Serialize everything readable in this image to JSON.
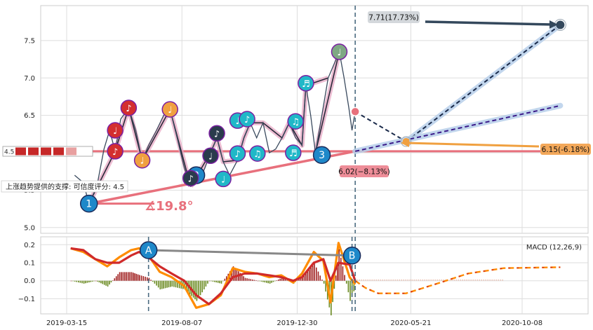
{
  "chart_data": [
    {
      "type": "line",
      "panel": "price",
      "ylim": [
        4.97,
        7.93
      ],
      "y_ticks": [
        "5.0",
        "5.5",
        "6.0",
        "6.5",
        "7.0",
        "7.5"
      ],
      "x_tick_labels": [
        "2019-03-15",
        "2019-08-07",
        "2019-12-30",
        "2020-05-21",
        "2020-10-08"
      ],
      "x_axis": "dates",
      "grid": true,
      "price_series": {
        "name": "",
        "values": [
          [
            "2019-03-25",
            5.7
          ],
          [
            "2019-04-05",
            5.6
          ],
          [
            "2019-04-12",
            5.32
          ],
          [
            "2019-04-22",
            5.55
          ],
          [
            "2019-05-01",
            6.05
          ],
          [
            "2019-05-08",
            6.3
          ],
          [
            "2019-05-15",
            6.02
          ],
          [
            "2019-05-22",
            6.45
          ],
          [
            "2019-06-01",
            6.6
          ],
          [
            "2019-06-10",
            6.3
          ],
          [
            "2019-06-18",
            5.9
          ],
          [
            "2019-06-26",
            6.1
          ],
          [
            "2019-07-06",
            6.3
          ],
          [
            "2019-07-15",
            6.5
          ],
          [
            "2019-07-23",
            6.58
          ],
          [
            "2019-08-01",
            6.2
          ],
          [
            "2019-08-10",
            5.8
          ],
          [
            "2019-08-18",
            5.55
          ],
          [
            "2019-08-28",
            5.6
          ],
          [
            "2019-09-05",
            5.8
          ],
          [
            "2019-09-12",
            6.0
          ],
          [
            "2019-09-20",
            6.2
          ],
          [
            "2019-09-28",
            5.88
          ],
          [
            "2019-10-06",
            5.7
          ],
          [
            "2019-10-16",
            5.9
          ],
          [
            "2019-10-24",
            6.2
          ],
          [
            "2019-11-01",
            6.4
          ],
          [
            "2019-11-09",
            6.2
          ],
          [
            "2019-11-17",
            6.4
          ],
          [
            "2019-11-25",
            6.0
          ],
          [
            "2019-12-03",
            6.05
          ],
          [
            "2019-12-11",
            6.2
          ],
          [
            "2019-12-20",
            6.4
          ],
          [
            "2019-12-28",
            6.2
          ],
          [
            "2020-01-05",
            6.1
          ],
          [
            "2020-01-10",
            6.9
          ],
          [
            "2020-01-16",
            6.5
          ],
          [
            "2020-01-22",
            6.0
          ],
          [
            "2020-01-30",
            6.5
          ],
          [
            "2020-02-07",
            7.0
          ],
          [
            "2020-02-15",
            7.2
          ],
          [
            "2020-02-21",
            7.35
          ],
          [
            "2020-02-27",
            7.0
          ],
          [
            "2020-03-04",
            6.6
          ],
          [
            "2020-03-08",
            6.3
          ],
          [
            "2020-03-12",
            6.55
          ]
        ]
      },
      "projections": [
        {
          "from": [
            "2020-03-12",
            6.55
          ],
          "to": [
            "2020-05-15",
            6.15
          ],
          "style": "dashed-navy"
        },
        {
          "from": [
            "2020-05-15",
            6.15
          ],
          "to": [
            "2020-11-25",
            7.71
          ],
          "style": "dashed-navy-glow"
        },
        {
          "from": [
            "2020-03-12",
            6.02
          ],
          "to": [
            "2020-11-25",
            6.63
          ],
          "style": "dashed-purple-glow"
        }
      ],
      "support_line": {
        "level": 6.02,
        "label": "上涨趋势提供的支撑: 可信度评分: 4.5"
      },
      "trend_line": {
        "from": [
          "2019-04-12",
          5.32
        ],
        "to": [
          "2020-03-12",
          6.02
        ],
        "angle_label": "∡19.8°"
      },
      "zigzag_lines": [
        [
          [
            "2019-04-12",
            5.32
          ],
          [
            "2019-05-15",
            6.02
          ],
          [
            "2019-06-01",
            6.6
          ],
          [
            "2019-06-18",
            5.9
          ],
          [
            "2019-07-23",
            6.58
          ],
          [
            "2019-08-18",
            5.55
          ]
        ],
        [
          [
            "2019-08-18",
            5.55
          ],
          [
            "2019-09-12",
            6.0
          ],
          [
            "2019-09-20",
            6.2
          ],
          [
            "2019-09-28",
            5.88
          ],
          [
            "2019-10-16",
            5.9
          ],
          [
            "2019-10-24",
            6.2
          ],
          [
            "2019-11-01",
            6.4
          ],
          [
            "2019-11-17",
            6.4
          ],
          [
            "2019-12-11",
            6.2
          ],
          [
            "2019-12-20",
            6.4
          ],
          [
            "2020-01-05",
            6.1
          ],
          [
            "2020-01-10",
            6.9
          ],
          [
            "2020-02-07",
            7.0
          ]
        ],
        [
          [
            "2020-01-22",
            6.0
          ],
          [
            "2020-02-21",
            7.35
          ]
        ]
      ],
      "markers": [
        {
          "label": "1",
          "x": "2019-04-12",
          "y": 5.32,
          "kind": "number",
          "color": "#1e88c9"
        },
        {
          "label": "2",
          "x": "2019-08-25",
          "y": 5.7,
          "kind": "number",
          "color": "#1e88c9"
        },
        {
          "label": "3",
          "x": "2020-01-30",
          "y": 5.97,
          "kind": "number",
          "color": "#1e88c9"
        },
        {
          "label": "♪",
          "x": "2019-05-15",
          "y": 6.02,
          "kind": "note",
          "color": "#d32f2f"
        },
        {
          "label": "♩",
          "x": "2019-05-15",
          "y": 6.3,
          "kind": "note",
          "color": "#d32f2f"
        },
        {
          "label": "♪",
          "x": "2019-06-01",
          "y": 6.6,
          "kind": "note",
          "color": "#d32f2f"
        },
        {
          "label": "♩",
          "x": "2019-06-18",
          "y": 5.9,
          "kind": "note",
          "color": "#f0a040"
        },
        {
          "label": "♩",
          "x": "2019-07-23",
          "y": 6.58,
          "kind": "note",
          "color": "#f0a040"
        },
        {
          "label": "♪",
          "x": "2019-08-18",
          "y": 5.66,
          "kind": "note",
          "color": "#2a3b4c"
        },
        {
          "label": "♩",
          "x": "2019-09-12",
          "y": 5.96,
          "kind": "note",
          "color": "#2a3b4c"
        },
        {
          "label": "♪",
          "x": "2019-09-20",
          "y": 6.26,
          "kind": "note",
          "color": "#2a3b4c"
        },
        {
          "label": "♩",
          "x": "2019-09-28",
          "y": 5.65,
          "kind": "note",
          "color": "#20b8c8"
        },
        {
          "label": "♪",
          "x": "2019-10-16",
          "y": 5.99,
          "kind": "note",
          "color": "#20b8c8"
        },
        {
          "label": "♩",
          "x": "2019-10-16",
          "y": 6.43,
          "kind": "note",
          "color": "#20b8c8"
        },
        {
          "label": "♪",
          "x": "2019-10-28",
          "y": 6.45,
          "kind": "note",
          "color": "#20b8c8"
        },
        {
          "label": "♫",
          "x": "2019-11-10",
          "y": 5.99,
          "kind": "note",
          "color": "#20b8c8"
        },
        {
          "label": "♬",
          "x": "2019-12-25",
          "y": 6.0,
          "kind": "note",
          "color": "#20b8c8"
        },
        {
          "label": "♫",
          "x": "2019-12-28",
          "y": 6.42,
          "kind": "note",
          "color": "#20b8c8"
        },
        {
          "label": "♬",
          "x": "2020-01-10",
          "y": 6.93,
          "kind": "note",
          "color": "#20b8c8"
        },
        {
          "label": "♩",
          "x": "2020-02-21",
          "y": 7.35,
          "kind": "note",
          "color": "#7fa884"
        }
      ],
      "annotations": [
        {
          "text": "7.71(17.73%)",
          "kind": "target-top"
        },
        {
          "text": "6.15(-6.18%)",
          "kind": "target-mid"
        },
        {
          "text": "6.02(−8.13%)",
          "kind": "target-low"
        },
        {
          "text": "4.5",
          "kind": "rating"
        }
      ],
      "vertical_marker_date": "2020-03-12"
    },
    {
      "type": "bar",
      "panel": "macd",
      "legend": "MACD (12,26,9)",
      "ylim": [
        -0.18,
        0.24
      ],
      "y_ticks": [
        "0.2",
        "0.1",
        "0.0",
        "−0.1"
      ],
      "grid": true,
      "macd_line": [
        [
          "2019-03-20",
          0.18
        ],
        [
          "2019-04-05",
          0.16
        ],
        [
          "2019-04-20",
          0.12
        ],
        [
          "2019-05-05",
          0.08
        ],
        [
          "2019-05-20",
          0.13
        ],
        [
          "2019-06-04",
          0.17
        ],
        [
          "2019-06-14",
          0.18
        ],
        [
          "2019-06-26",
          0.14
        ],
        [
          "2019-07-10",
          0.05
        ],
        [
          "2019-07-25",
          0.02
        ],
        [
          "2019-08-10",
          -0.03
        ],
        [
          "2019-08-25",
          -0.15
        ],
        [
          "2019-09-10",
          -0.13
        ],
        [
          "2019-09-25",
          -0.08
        ],
        [
          "2019-10-10",
          0.07
        ],
        [
          "2019-10-25",
          0.05
        ],
        [
          "2019-11-10",
          0.04
        ],
        [
          "2019-11-25",
          0.02
        ],
        [
          "2019-12-10",
          0.03
        ],
        [
          "2019-12-25",
          -0.01
        ],
        [
          "2020-01-05",
          0.04
        ],
        [
          "2020-01-20",
          0.16
        ],
        [
          "2020-02-01",
          0.11
        ],
        [
          "2020-02-10",
          -0.12
        ],
        [
          "2020-02-20",
          0.21
        ],
        [
          "2020-03-05",
          0.02
        ],
        [
          "2020-03-12",
          -0.02
        ]
      ],
      "signal_line": [
        [
          "2019-03-20",
          0.18
        ],
        [
          "2019-04-05",
          0.17
        ],
        [
          "2019-04-20",
          0.12
        ],
        [
          "2019-05-05",
          0.1
        ],
        [
          "2019-05-20",
          0.1
        ],
        [
          "2019-06-04",
          0.14
        ],
        [
          "2019-06-14",
          0.16
        ],
        [
          "2019-06-26",
          0.13
        ],
        [
          "2019-07-10",
          0.08
        ],
        [
          "2019-07-25",
          0.04
        ],
        [
          "2019-08-10",
          0.0
        ],
        [
          "2019-08-25",
          -0.08
        ],
        [
          "2019-09-10",
          -0.13
        ],
        [
          "2019-09-25",
          -0.07
        ],
        [
          "2019-10-10",
          0.02
        ],
        [
          "2019-10-25",
          0.04
        ],
        [
          "2019-11-10",
          0.04
        ],
        [
          "2019-11-25",
          0.03
        ],
        [
          "2019-12-10",
          0.02
        ],
        [
          "2019-12-25",
          0.0
        ],
        [
          "2020-01-05",
          0.02
        ],
        [
          "2020-01-20",
          0.1
        ],
        [
          "2020-02-01",
          0.12
        ],
        [
          "2020-02-10",
          0.0
        ],
        [
          "2020-02-20",
          0.1
        ],
        [
          "2020-03-05",
          0.09
        ],
        [
          "2020-03-12",
          0.0
        ]
      ],
      "projected_line": [
        [
          "2020-03-12",
          0.0
        ],
        [
          "2020-03-25",
          -0.04
        ],
        [
          "2020-04-10",
          -0.07
        ],
        [
          "2020-05-15",
          -0.07
        ],
        [
          "2020-06-20",
          -0.02
        ],
        [
          "2020-08-01",
          0.04
        ],
        [
          "2020-09-15",
          0.07
        ],
        [
          "2020-11-25",
          0.075
        ]
      ],
      "divergence": {
        "from": [
          "2019-06-26",
          0.17
        ],
        "to": [
          "2020-03-08",
          0.14
        ],
        "labels": [
          "A",
          "B"
        ]
      },
      "vertical_marker_dates": [
        "2019-06-26",
        "2020-03-08",
        "2020-03-12"
      ]
    }
  ],
  "colors": {
    "price": "#3a4a5e",
    "support": "#e8707c",
    "projection_navy": "#1a2a4a",
    "projection_purple": "#3a1a8a",
    "glow": "#b8d0ea",
    "macd_orange": "#ff8c00",
    "macd_red": "#d02a2a",
    "hist_pos": "#a02020",
    "hist_neg": "#6a8a20",
    "divergence": "#888888"
  }
}
